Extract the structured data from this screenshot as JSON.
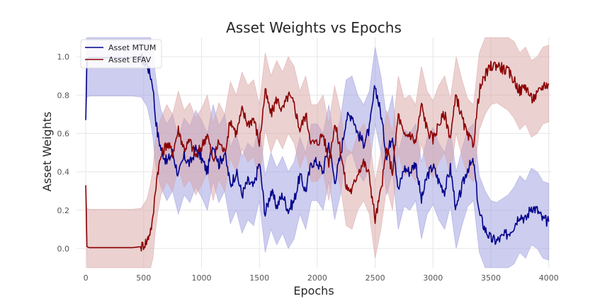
{
  "chart_data": {
    "type": "line",
    "title": "Asset Weights vs Epochs",
    "xlabel": "Epochs",
    "ylabel": "Asset Weights",
    "xlim": [
      -80,
      4020
    ],
    "ylim": [
      -0.1,
      1.1
    ],
    "x_ticks": [
      0,
      500,
      1000,
      1500,
      2000,
      2500,
      3000,
      3500,
      4000
    ],
    "y_ticks": [
      0.0,
      0.2,
      0.4,
      0.6,
      0.8,
      1.0
    ],
    "grid": true,
    "legend_position": "top-left",
    "series": [
      {
        "name": "Asset MTUM",
        "color": "#00008b",
        "band_color": "#9c9ce0",
        "x": [
          0,
          10,
          30,
          60,
          100,
          200,
          300,
          400,
          480,
          530,
          560,
          580,
          600,
          620,
          650,
          700,
          750,
          800,
          850,
          900,
          950,
          1000,
          1050,
          1100,
          1150,
          1200,
          1250,
          1300,
          1350,
          1400,
          1450,
          1500,
          1550,
          1600,
          1650,
          1700,
          1750,
          1800,
          1850,
          1900,
          1950,
          2000,
          2050,
          2100,
          2150,
          2200,
          2250,
          2300,
          2350,
          2400,
          2450,
          2500,
          2550,
          2600,
          2650,
          2700,
          2750,
          2800,
          2850,
          2900,
          2950,
          3000,
          3050,
          3100,
          3150,
          3200,
          3250,
          3300,
          3350,
          3400,
          3450,
          3500,
          3550,
          3600,
          3650,
          3700,
          3750,
          3800,
          3850,
          3900,
          3950,
          4000
        ],
        "values": [
          0.67,
          0.99,
          0.995,
          0.995,
          0.995,
          0.995,
          0.995,
          0.995,
          0.99,
          0.96,
          0.9,
          0.85,
          0.7,
          0.6,
          0.52,
          0.45,
          0.5,
          0.38,
          0.48,
          0.44,
          0.52,
          0.47,
          0.4,
          0.55,
          0.44,
          0.5,
          0.33,
          0.4,
          0.28,
          0.35,
          0.32,
          0.45,
          0.18,
          0.3,
          0.22,
          0.28,
          0.2,
          0.25,
          0.38,
          0.3,
          0.45,
          0.45,
          0.4,
          0.55,
          0.35,
          0.48,
          0.68,
          0.7,
          0.6,
          0.55,
          0.62,
          0.85,
          0.7,
          0.48,
          0.6,
          0.3,
          0.42,
          0.4,
          0.45,
          0.25,
          0.38,
          0.43,
          0.35,
          0.3,
          0.42,
          0.2,
          0.32,
          0.42,
          0.45,
          0.18,
          0.1,
          0.05,
          0.04,
          0.06,
          0.08,
          0.12,
          0.18,
          0.15,
          0.22,
          0.2,
          0.15,
          0.14
        ],
        "lower": [
          0.67,
          0.79,
          0.795,
          0.795,
          0.795,
          0.795,
          0.795,
          0.795,
          0.79,
          0.74,
          0.66,
          0.58,
          0.45,
          0.38,
          0.32,
          0.25,
          0.3,
          0.18,
          0.28,
          0.24,
          0.32,
          0.27,
          0.2,
          0.35,
          0.24,
          0.3,
          0.13,
          0.2,
          0.08,
          0.15,
          0.12,
          0.25,
          -0.02,
          0.1,
          0.02,
          0.08,
          0.0,
          0.05,
          0.18,
          0.1,
          0.25,
          0.25,
          0.2,
          0.35,
          0.15,
          0.28,
          0.48,
          0.5,
          0.4,
          0.35,
          0.42,
          0.65,
          0.5,
          0.28,
          0.4,
          0.1,
          0.22,
          0.2,
          0.25,
          0.05,
          0.18,
          0.23,
          0.15,
          0.1,
          0.22,
          0.0,
          0.12,
          0.22,
          0.25,
          -0.02,
          -0.1,
          -0.1,
          -0.1,
          -0.1,
          -0.1,
          -0.08,
          -0.02,
          -0.05,
          0.02,
          0.0,
          -0.05,
          -0.06
        ],
        "upper": [
          0.67,
          1.1,
          1.1,
          1.1,
          1.1,
          1.1,
          1.1,
          1.1,
          1.1,
          1.1,
          1.1,
          1.05,
          0.92,
          0.82,
          0.72,
          0.65,
          0.7,
          0.58,
          0.68,
          0.64,
          0.72,
          0.67,
          0.6,
          0.75,
          0.64,
          0.7,
          0.53,
          0.6,
          0.48,
          0.55,
          0.52,
          0.65,
          0.38,
          0.5,
          0.42,
          0.48,
          0.4,
          0.45,
          0.58,
          0.5,
          0.65,
          0.65,
          0.6,
          0.75,
          0.55,
          0.68,
          0.88,
          0.9,
          0.8,
          0.75,
          0.82,
          1.05,
          0.9,
          0.68,
          0.8,
          0.5,
          0.62,
          0.6,
          0.65,
          0.45,
          0.58,
          0.63,
          0.55,
          0.5,
          0.62,
          0.4,
          0.52,
          0.62,
          0.65,
          0.38,
          0.3,
          0.25,
          0.24,
          0.26,
          0.28,
          0.32,
          0.38,
          0.35,
          0.42,
          0.4,
          0.35,
          0.34
        ]
      },
      {
        "name": "Asset EFAV",
        "color": "#8b0000",
        "band_color": "#d9a3a3",
        "x": [
          0,
          10,
          30,
          60,
          100,
          200,
          300,
          400,
          480,
          530,
          560,
          580,
          600,
          620,
          650,
          700,
          750,
          800,
          850,
          900,
          950,
          1000,
          1050,
          1100,
          1150,
          1200,
          1250,
          1300,
          1350,
          1400,
          1450,
          1500,
          1550,
          1600,
          1650,
          1700,
          1750,
          1800,
          1850,
          1900,
          1950,
          2000,
          2050,
          2100,
          2150,
          2200,
          2250,
          2300,
          2350,
          2400,
          2450,
          2500,
          2550,
          2600,
          2650,
          2700,
          2750,
          2800,
          2850,
          2900,
          2950,
          3000,
          3050,
          3100,
          3150,
          3200,
          3250,
          3300,
          3350,
          3400,
          3450,
          3500,
          3550,
          3600,
          3650,
          3700,
          3750,
          3800,
          3850,
          3900,
          3950,
          4000
        ],
        "values": [
          0.33,
          0.01,
          0.005,
          0.005,
          0.005,
          0.005,
          0.005,
          0.005,
          0.01,
          0.04,
          0.1,
          0.15,
          0.3,
          0.4,
          0.48,
          0.55,
          0.5,
          0.62,
          0.52,
          0.56,
          0.48,
          0.53,
          0.6,
          0.45,
          0.56,
          0.5,
          0.67,
          0.6,
          0.72,
          0.65,
          0.68,
          0.55,
          0.82,
          0.7,
          0.78,
          0.72,
          0.8,
          0.75,
          0.62,
          0.7,
          0.55,
          0.55,
          0.6,
          0.45,
          0.65,
          0.52,
          0.32,
          0.3,
          0.4,
          0.45,
          0.38,
          0.15,
          0.3,
          0.52,
          0.4,
          0.7,
          0.58,
          0.6,
          0.55,
          0.75,
          0.62,
          0.57,
          0.65,
          0.7,
          0.58,
          0.8,
          0.68,
          0.58,
          0.55,
          0.82,
          0.9,
          0.95,
          0.96,
          0.94,
          0.92,
          0.88,
          0.82,
          0.85,
          0.78,
          0.8,
          0.85,
          0.86
        ],
        "lower": [
          0.33,
          -0.1,
          -0.1,
          -0.1,
          -0.1,
          -0.1,
          -0.1,
          -0.1,
          -0.1,
          -0.1,
          -0.1,
          -0.05,
          0.08,
          0.18,
          0.28,
          0.35,
          0.3,
          0.42,
          0.32,
          0.36,
          0.28,
          0.33,
          0.4,
          0.25,
          0.36,
          0.3,
          0.47,
          0.4,
          0.52,
          0.45,
          0.48,
          0.35,
          0.62,
          0.5,
          0.58,
          0.52,
          0.6,
          0.55,
          0.42,
          0.5,
          0.35,
          0.35,
          0.4,
          0.25,
          0.45,
          0.32,
          0.12,
          0.1,
          0.2,
          0.25,
          0.18,
          -0.05,
          0.1,
          0.32,
          0.2,
          0.5,
          0.38,
          0.4,
          0.35,
          0.55,
          0.42,
          0.37,
          0.45,
          0.5,
          0.38,
          0.6,
          0.48,
          0.38,
          0.35,
          0.62,
          0.7,
          0.75,
          0.76,
          0.74,
          0.72,
          0.68,
          0.62,
          0.65,
          0.58,
          0.6,
          0.65,
          0.66
        ],
        "upper": [
          0.33,
          0.21,
          0.205,
          0.205,
          0.205,
          0.205,
          0.205,
          0.205,
          0.21,
          0.26,
          0.34,
          0.42,
          0.55,
          0.62,
          0.68,
          0.75,
          0.7,
          0.82,
          0.72,
          0.76,
          0.68,
          0.73,
          0.8,
          0.65,
          0.76,
          0.7,
          0.87,
          0.8,
          0.92,
          0.85,
          0.88,
          0.75,
          1.02,
          0.9,
          0.98,
          0.92,
          1.0,
          0.95,
          0.82,
          0.9,
          0.75,
          0.75,
          0.8,
          0.65,
          0.85,
          0.72,
          0.52,
          0.5,
          0.6,
          0.65,
          0.58,
          0.35,
          0.5,
          0.72,
          0.6,
          0.9,
          0.78,
          0.8,
          0.75,
          0.95,
          0.82,
          0.77,
          0.85,
          0.9,
          0.78,
          1.0,
          0.88,
          0.78,
          0.75,
          1.02,
          1.1,
          1.1,
          1.1,
          1.1,
          1.1,
          1.08,
          1.02,
          1.05,
          0.98,
          1.0,
          1.05,
          1.06
        ]
      }
    ]
  }
}
